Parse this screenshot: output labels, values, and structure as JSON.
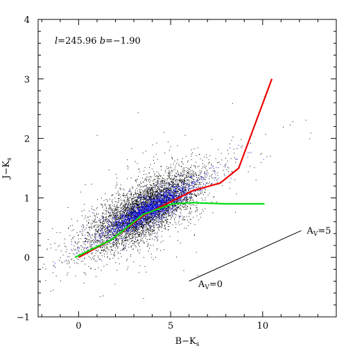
{
  "chart_data": {
    "type": "scatter",
    "title": "",
    "annotation_label": {
      "l_sym": "l",
      "l_val": "=245.96",
      "b_sym": "b",
      "b_val": "=−1.90"
    },
    "xlabel": {
      "main": "B−K",
      "sub": "s"
    },
    "ylabel": {
      "main": "J−K",
      "sub": "s"
    },
    "xlim": [
      -2.2,
      14
    ],
    "ylim": [
      -1,
      4
    ],
    "xticks_major": [
      0,
      5,
      10
    ],
    "xticks_minor_step": 1,
    "yticks_major": [
      -1,
      0,
      1,
      2,
      3,
      4
    ],
    "yticks_minor_step": 0.2,
    "xtick_labels": [
      "0",
      "5",
      "10"
    ],
    "ytick_labels": [
      "−1",
      "0",
      "1",
      "2",
      "3",
      "4"
    ],
    "grid": false,
    "colors": {
      "black_points": "#000000",
      "blue_points": "#1515ff",
      "red_line": "#ee0000",
      "green_line": "#00dd11"
    },
    "series": [
      {
        "kind": "line",
        "color": "#ee0000",
        "x": [
          0.0,
          1.8,
          3.5,
          5.1,
          6.2,
          7.7,
          8.7,
          10.5
        ],
        "y": [
          0.0,
          0.3,
          0.7,
          0.95,
          1.12,
          1.25,
          1.5,
          3.0
        ]
      },
      {
        "kind": "line",
        "color": "#00dd11",
        "x": [
          -0.2,
          1.8,
          3.5,
          5.1,
          6.2,
          8.0,
          10.1
        ],
        "y": [
          0.0,
          0.3,
          0.72,
          0.9,
          0.92,
          0.9,
          0.9
        ]
      },
      {
        "kind": "line",
        "color": "#000000",
        "x": [
          6.0,
          12.1
        ],
        "y": [
          -0.4,
          0.45
        ]
      },
      {
        "kind": "scatter",
        "color": "#000000",
        "description_distribution": {
          "center_x": 3.6,
          "center_y": 0.8,
          "slope": 0.16,
          "spread_x": 1.5,
          "spread_y": 0.22,
          "count": 5500
        }
      },
      {
        "kind": "scatter",
        "color": "#1515ff",
        "description_distribution": {
          "center_x": 3.8,
          "center_y": 0.8,
          "slope": 0.16,
          "spread_x": 1.15,
          "spread_y": 0.1,
          "count": 1800
        }
      }
    ],
    "reddening_labels": [
      {
        "main": "A",
        "sub": "V",
        "value": "=5",
        "x": 12.4,
        "y": 0.4
      },
      {
        "main": "A",
        "sub": "V",
        "value": "=0",
        "x": 6.5,
        "y": -0.5
      }
    ]
  }
}
